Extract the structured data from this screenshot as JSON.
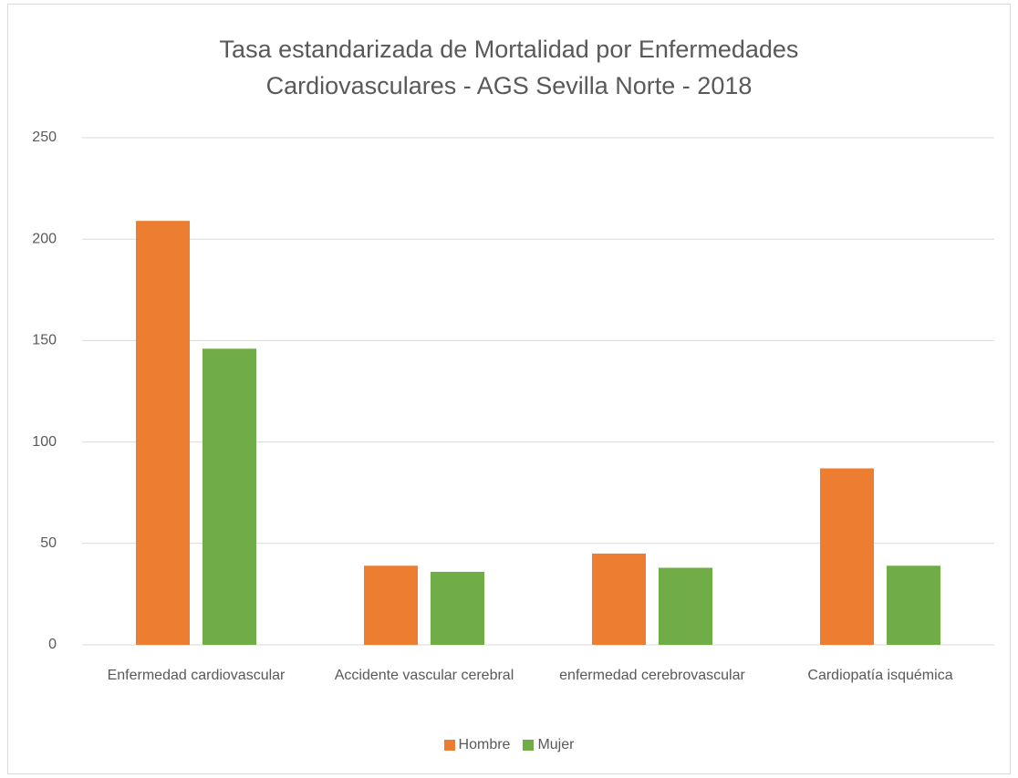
{
  "chart_data": {
    "type": "bar",
    "title": "Tasa estandarizada de Mortalidad por Enfermedades Cardiovasculares - AGS Sevilla Norte - 2018",
    "categories": [
      "Enfermedad cardiovascular",
      "Accidente vascular cerebral",
      "enfermedad cerebrovascular",
      "Cardiopatía isquémica"
    ],
    "series": [
      {
        "name": "Hombre",
        "color": "#ed7d31",
        "values": [
          209,
          39,
          45,
          87
        ]
      },
      {
        "name": "Mujer",
        "color": "#70ad47",
        "values": [
          146,
          36,
          38,
          39
        ]
      }
    ],
    "ylim": [
      0,
      250
    ],
    "yticks": [
      0,
      50,
      100,
      150,
      200,
      250
    ],
    "grid": true,
    "legend": "bottom"
  }
}
